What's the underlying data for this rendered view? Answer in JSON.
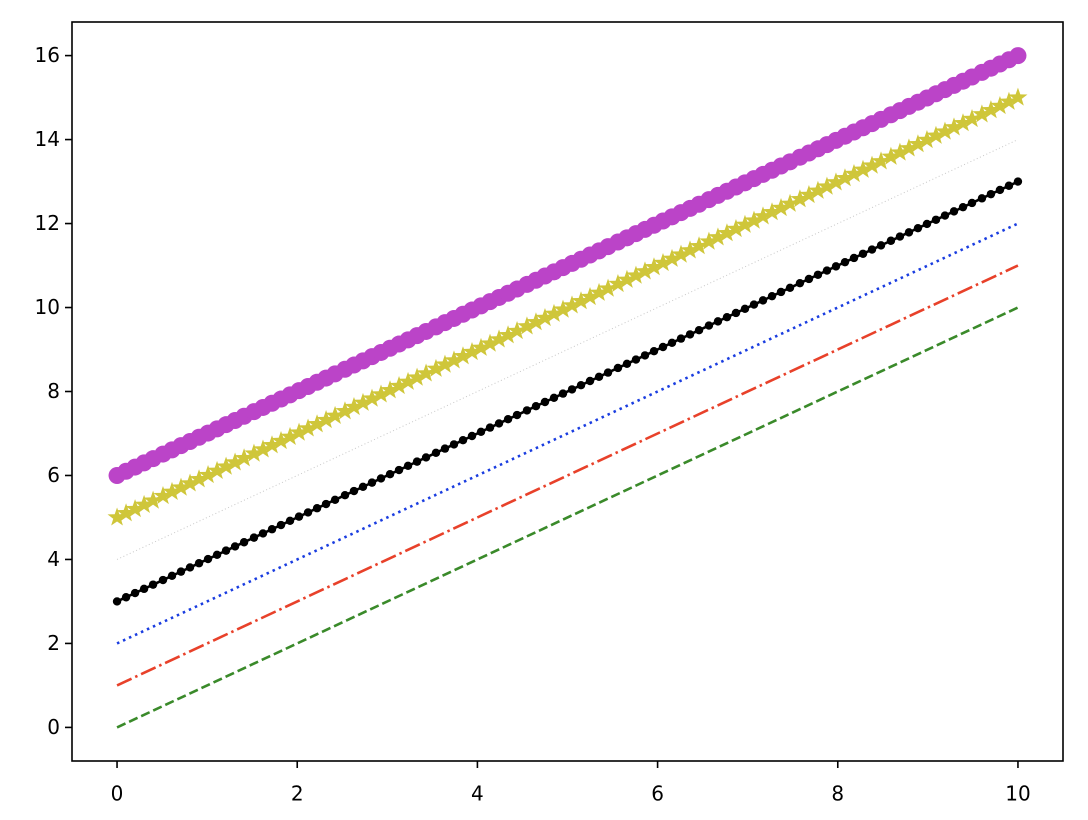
{
  "chart_data": {
    "type": "line",
    "x": [
      0,
      0.1,
      0.2,
      0.3,
      0.4,
      0.51,
      0.61,
      0.71,
      0.81,
      0.91,
      1.01,
      1.11,
      1.21,
      1.31,
      1.41,
      1.52,
      1.62,
      1.72,
      1.82,
      1.92,
      2.02,
      2.12,
      2.22,
      2.32,
      2.42,
      2.53,
      2.63,
      2.73,
      2.83,
      2.93,
      3.03,
      3.13,
      3.23,
      3.33,
      3.43,
      3.54,
      3.64,
      3.74,
      3.84,
      3.94,
      4.04,
      4.14,
      4.24,
      4.34,
      4.44,
      4.55,
      4.65,
      4.75,
      4.85,
      4.95,
      5.05,
      5.15,
      5.25,
      5.35,
      5.45,
      5.56,
      5.66,
      5.76,
      5.86,
      5.96,
      6.06,
      6.16,
      6.26,
      6.36,
      6.46,
      6.57,
      6.67,
      6.77,
      6.87,
      6.97,
      7.07,
      7.17,
      7.27,
      7.37,
      7.47,
      7.58,
      7.68,
      7.78,
      7.88,
      7.98,
      8.08,
      8.18,
      8.28,
      8.38,
      8.48,
      8.59,
      8.69,
      8.79,
      8.89,
      8.99,
      9.09,
      9.19,
      9.29,
      9.39,
      9.49,
      9.6,
      9.7,
      9.8,
      9.9,
      10
    ],
    "series": [
      {
        "color": "#3a8a2a",
        "linestyle": "dashed",
        "marker": "none",
        "x": [
          0,
          10
        ],
        "values": [
          0,
          10
        ]
      },
      {
        "color": "#e8412a",
        "linestyle": "dashdot",
        "marker": "none",
        "x": [
          0,
          10
        ],
        "values": [
          1,
          11
        ]
      },
      {
        "color": "#1a3de0",
        "linestyle": "dotted",
        "marker": "none",
        "x": [
          0,
          10
        ],
        "values": [
          2,
          12
        ]
      },
      {
        "color": "#000000",
        "linestyle": "solid",
        "marker": "point",
        "values": [
          3,
          3.1,
          3.2,
          3.3,
          3.4,
          3.51,
          3.61,
          3.71,
          3.81,
          3.91,
          4.01,
          4.11,
          4.21,
          4.31,
          4.41,
          4.52,
          4.62,
          4.72,
          4.82,
          4.92,
          5.02,
          5.12,
          5.22,
          5.32,
          5.42,
          5.53,
          5.63,
          5.73,
          5.83,
          5.93,
          6.03,
          6.13,
          6.23,
          6.33,
          6.43,
          6.54,
          6.64,
          6.74,
          6.84,
          6.94,
          7.04,
          7.14,
          7.24,
          7.34,
          7.44,
          7.55,
          7.65,
          7.75,
          7.85,
          7.95,
          8.05,
          8.15,
          8.25,
          8.35,
          8.45,
          8.56,
          8.66,
          8.76,
          8.86,
          8.96,
          9.06,
          9.16,
          9.26,
          9.36,
          9.46,
          9.57,
          9.67,
          9.77,
          9.87,
          9.97,
          10.07,
          10.17,
          10.27,
          10.37,
          10.47,
          10.58,
          10.68,
          10.78,
          10.88,
          10.98,
          11.08,
          11.18,
          11.28,
          11.38,
          11.48,
          11.59,
          11.69,
          11.79,
          11.89,
          11.99,
          12.09,
          12.19,
          12.29,
          12.39,
          12.49,
          12.6,
          12.7,
          12.8,
          12.9,
          13
        ]
      },
      {
        "color": "#c8c8c8",
        "linestyle": "dotted-thin",
        "marker": "none",
        "x": [
          0,
          10
        ],
        "values": [
          4,
          14
        ]
      },
      {
        "color": "#cfc63a",
        "linestyle": "solid",
        "marker": "star",
        "values": [
          5,
          5.1,
          5.2,
          5.3,
          5.4,
          5.51,
          5.61,
          5.71,
          5.81,
          5.91,
          6.01,
          6.11,
          6.21,
          6.31,
          6.41,
          6.52,
          6.62,
          6.72,
          6.82,
          6.92,
          7.02,
          7.12,
          7.22,
          7.32,
          7.42,
          7.53,
          7.63,
          7.73,
          7.83,
          7.93,
          8.03,
          8.13,
          8.23,
          8.33,
          8.43,
          8.54,
          8.64,
          8.74,
          8.84,
          8.94,
          9.04,
          9.14,
          9.24,
          9.34,
          9.44,
          9.55,
          9.65,
          9.75,
          9.85,
          9.95,
          10.05,
          10.15,
          10.25,
          10.35,
          10.45,
          10.56,
          10.66,
          10.76,
          10.86,
          10.96,
          11.06,
          11.16,
          11.26,
          11.36,
          11.46,
          11.57,
          11.67,
          11.77,
          11.87,
          11.97,
          12.07,
          12.17,
          12.27,
          12.37,
          12.47,
          12.58,
          12.68,
          12.78,
          12.88,
          12.98,
          13.08,
          13.18,
          13.28,
          13.38,
          13.48,
          13.59,
          13.69,
          13.79,
          13.89,
          13.99,
          14.09,
          14.19,
          14.29,
          14.39,
          14.49,
          14.6,
          14.7,
          14.8,
          14.9,
          15
        ]
      },
      {
        "color": "#bb44c8",
        "linestyle": "solid",
        "marker": "circle",
        "values": [
          6,
          6.1,
          6.2,
          6.3,
          6.4,
          6.51,
          6.61,
          6.71,
          6.81,
          6.91,
          7.01,
          7.11,
          7.21,
          7.31,
          7.41,
          7.52,
          7.62,
          7.72,
          7.82,
          7.92,
          8.02,
          8.12,
          8.22,
          8.32,
          8.42,
          8.53,
          8.63,
          8.73,
          8.83,
          8.93,
          9.03,
          9.13,
          9.23,
          9.33,
          9.43,
          9.54,
          9.64,
          9.74,
          9.84,
          9.94,
          10.04,
          10.14,
          10.24,
          10.34,
          10.44,
          10.55,
          10.65,
          10.75,
          10.85,
          10.95,
          11.05,
          11.15,
          11.25,
          11.35,
          11.45,
          11.56,
          11.66,
          11.76,
          11.86,
          11.96,
          12.06,
          12.16,
          12.26,
          12.36,
          12.46,
          12.57,
          12.67,
          12.77,
          12.87,
          12.97,
          13.07,
          13.17,
          13.27,
          13.37,
          13.47,
          13.58,
          13.68,
          13.78,
          13.88,
          13.98,
          14.08,
          14.18,
          14.28,
          14.38,
          14.48,
          14.59,
          14.69,
          14.79,
          14.89,
          14.99,
          15.09,
          15.19,
          15.29,
          15.39,
          15.49,
          15.6,
          15.7,
          15.8,
          15.9,
          16
        ]
      }
    ],
    "xlim": [
      -0.5,
      10.5
    ],
    "xticks": [
      0,
      2,
      4,
      6,
      8,
      10
    ],
    "ylim": [
      -0.8,
      16.8
    ],
    "yticks": [
      0,
      2,
      4,
      6,
      8,
      10,
      12,
      14,
      16
    ],
    "grid": false
  }
}
